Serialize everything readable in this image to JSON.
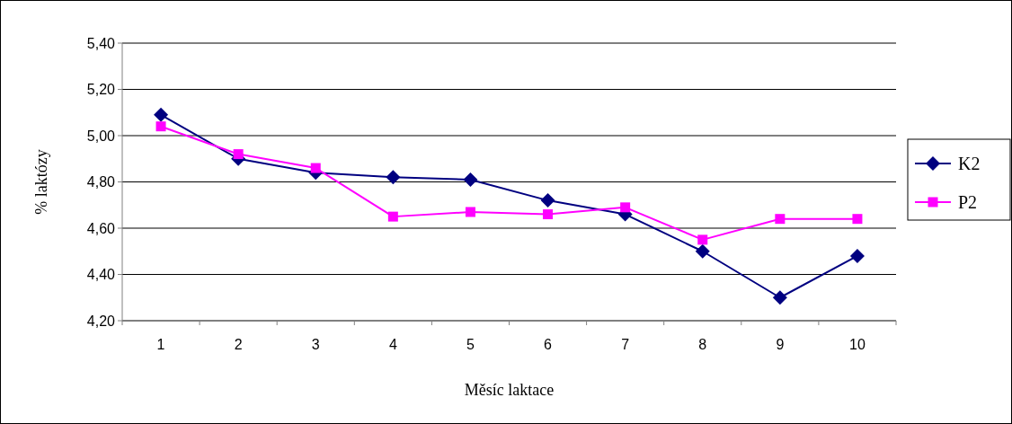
{
  "chart_data": {
    "type": "line",
    "xlabel": "Měsíc laktace",
    "ylabel": "% laktózy",
    "categories": [
      "1",
      "2",
      "3",
      "4",
      "5",
      "6",
      "7",
      "8",
      "9",
      "10"
    ],
    "series": [
      {
        "name": "K2",
        "color": "#000080",
        "marker": "diamond",
        "values": [
          5.09,
          4.9,
          4.84,
          4.82,
          4.81,
          4.72,
          4.66,
          4.5,
          4.3,
          4.48
        ]
      },
      {
        "name": "P2",
        "color": "#ff00ff",
        "marker": "square",
        "values": [
          5.04,
          4.92,
          4.86,
          4.65,
          4.67,
          4.66,
          4.69,
          4.55,
          4.64,
          4.64
        ]
      }
    ],
    "ylim": [
      4.2,
      5.4
    ],
    "yticks": [
      {
        "value": 4.2,
        "label": "4,20"
      },
      {
        "value": 4.4,
        "label": "4,40"
      },
      {
        "value": 4.6,
        "label": "4,60"
      },
      {
        "value": 4.8,
        "label": "4,80"
      },
      {
        "value": 5.0,
        "label": "5,00"
      },
      {
        "value": 5.2,
        "label": "5,20"
      },
      {
        "value": 5.4,
        "label": "5,40"
      }
    ],
    "grid": "y",
    "legend": "right"
  }
}
